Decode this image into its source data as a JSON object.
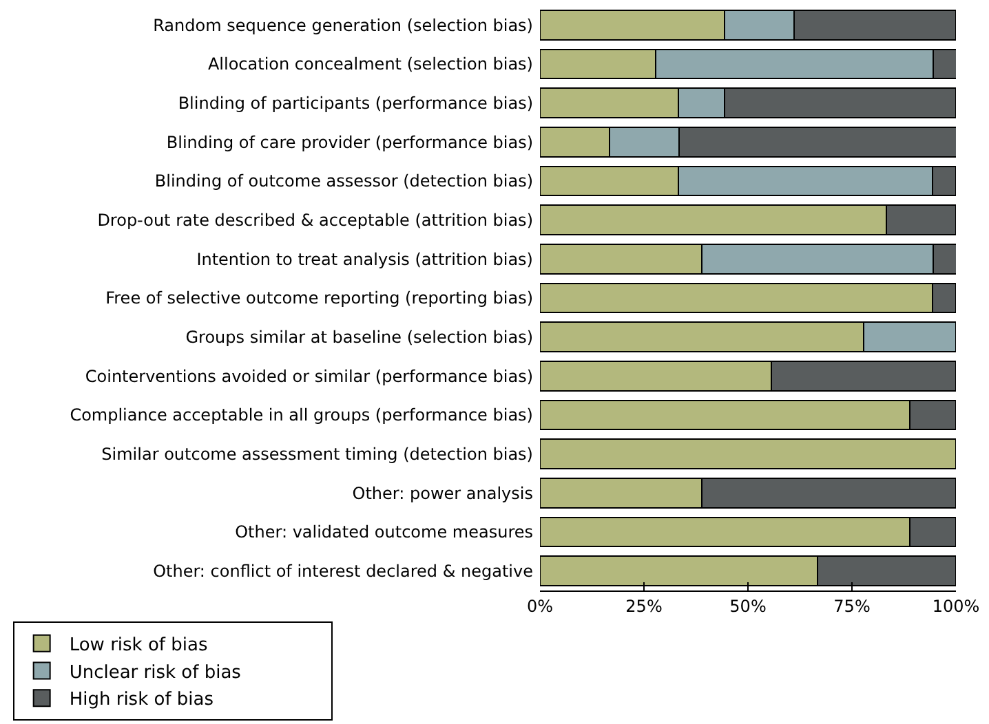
{
  "chart_data": {
    "type": "bar",
    "orientation": "horizontal",
    "stacked": true,
    "categories": [
      "Random sequence generation (selection bias)",
      "Allocation concealment (selection bias)",
      "Blinding of participants (performance bias)",
      "Blinding of care provider (performance bias)",
      "Blinding of outcome assessor (detection bias)",
      "Drop-out rate described & acceptable (attrition bias)",
      "Intention to treat analysis (attrition bias)",
      "Free of selective outcome reporting (reporting bias)",
      "Groups similar at baseline (selection bias)",
      "Cointerventions avoided or similar (performance bias)",
      "Compliance acceptable in all groups (performance bias)",
      "Similar outcome assessment timing (detection bias)",
      "Other: power analysis",
      "Other: validated outcome measures",
      "Other: conflict of interest declared & negative"
    ],
    "series": [
      {
        "name": "Low risk of bias",
        "color": "#b3b87d",
        "values": [
          44.4,
          27.8,
          33.3,
          16.7,
          33.3,
          83.3,
          38.9,
          94.4,
          77.8,
          55.6,
          88.9,
          100,
          38.9,
          88.9,
          66.7
        ]
      },
      {
        "name": "Unclear risk of bias",
        "color": "#8fa8ad",
        "values": [
          16.7,
          66.7,
          11.1,
          16.7,
          61.1,
          0,
          55.6,
          0,
          22.2,
          0,
          0,
          0,
          0,
          0,
          0
        ]
      },
      {
        "name": "High risk of bias",
        "color": "#595d5e",
        "values": [
          38.9,
          5.6,
          55.6,
          66.7,
          5.6,
          16.7,
          5.6,
          5.6,
          0,
          44.4,
          11.1,
          0,
          61.1,
          11.1,
          33.3
        ]
      }
    ],
    "xlim": [
      0,
      100
    ],
    "xticks": [
      {
        "value": 0,
        "label": "0%"
      },
      {
        "value": 25,
        "label": "25%"
      },
      {
        "value": 50,
        "label": "50%"
      },
      {
        "value": 75,
        "label": "75%"
      },
      {
        "value": 100,
        "label": "100%"
      }
    ],
    "grid": false,
    "legend": "bottom"
  }
}
